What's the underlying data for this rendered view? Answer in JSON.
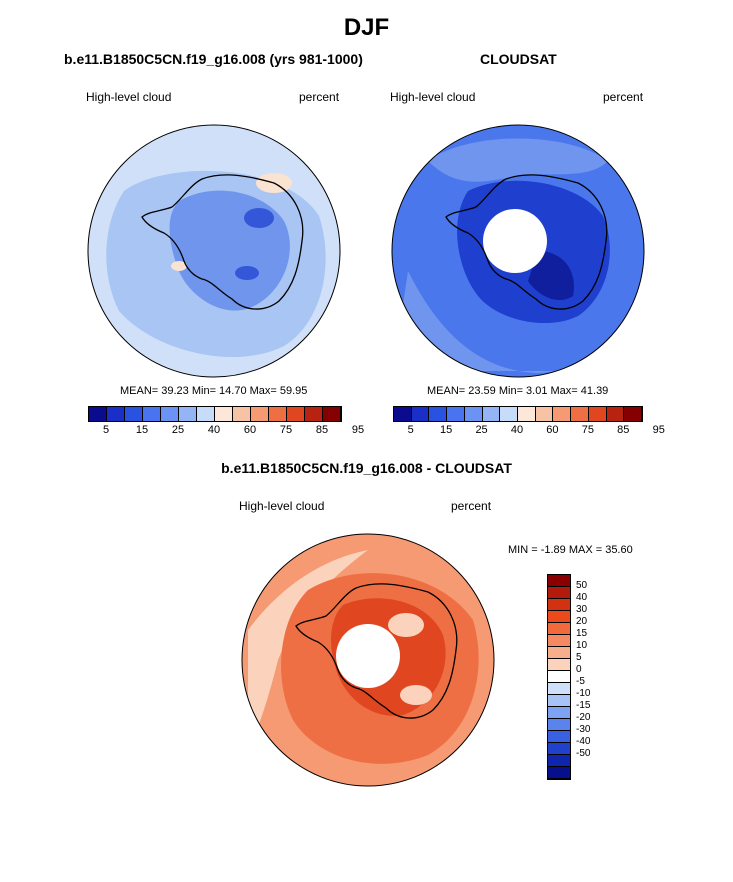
{
  "main_title": "DJF",
  "panel1": {
    "title": "b.e11.B1850C5CN.f19_g16.008 (yrs 981-1000)",
    "variable": "High-level cloud",
    "units": "percent",
    "stats": "MEAN=  39.23  Min=  14.70  Max=  59.95"
  },
  "panel2": {
    "title": "CLOUDSAT",
    "variable": "High-level cloud",
    "units": "percent",
    "stats": "MEAN=  23.59  Min=   3.01  Max=  41.39"
  },
  "panel3": {
    "title": "b.e11.B1850C5CN.f19_g16.008 - CLOUDSAT",
    "variable": "High-level cloud",
    "units": "percent",
    "stats": "MIN =  -1.89 MAX =  35.60"
  },
  "horizontal_colorbar": {
    "colors": [
      "#0b0b8f",
      "#1a2ec8",
      "#2a52e0",
      "#4a74ef",
      "#6a93f3",
      "#93b5f6",
      "#c7dcf8",
      "#fce7d9",
      "#f8c2a4",
      "#f59a72",
      "#ef6f45",
      "#e0461f",
      "#b82210",
      "#850000"
    ],
    "tick_labels": [
      "5",
      "15",
      "25",
      "40",
      "60",
      "75",
      "85",
      "95"
    ]
  },
  "vertical_colorbar": {
    "colors": [
      "#8a0000",
      "#b11a0d",
      "#d23112",
      "#ec4a1c",
      "#f26a3c",
      "#f58a62",
      "#f8ad8b",
      "#fbd3bd",
      "#ffffff",
      "#cfe0fb",
      "#a8c4f7",
      "#7da3f2",
      "#5a83ec",
      "#3a60e2",
      "#2141cc",
      "#0f25ad",
      "#060f8c"
    ],
    "tick_labels": [
      "50",
      "40",
      "30",
      "20",
      "15",
      "10",
      "5",
      "0",
      "-5",
      "-10",
      "-15",
      "-20",
      "-30",
      "-40",
      "-50"
    ]
  },
  "map_palette": {
    "model_background": "#cfe0f8",
    "model_light": "#a8c5f4",
    "model_mid": "#6f95ec",
    "model_dark": "#3357d8",
    "model_peach": "#fbe3d2",
    "obs_background": "#4a78ec",
    "obs_light": "#6f95ef",
    "obs_dark": "#1f3fcf",
    "obs_darkest": "#0f1f9e",
    "diff_background": "#f59a72",
    "diff_mid": "#ef6f45",
    "diff_dark": "#e0461f",
    "diff_light": "#fbd3bd"
  }
}
